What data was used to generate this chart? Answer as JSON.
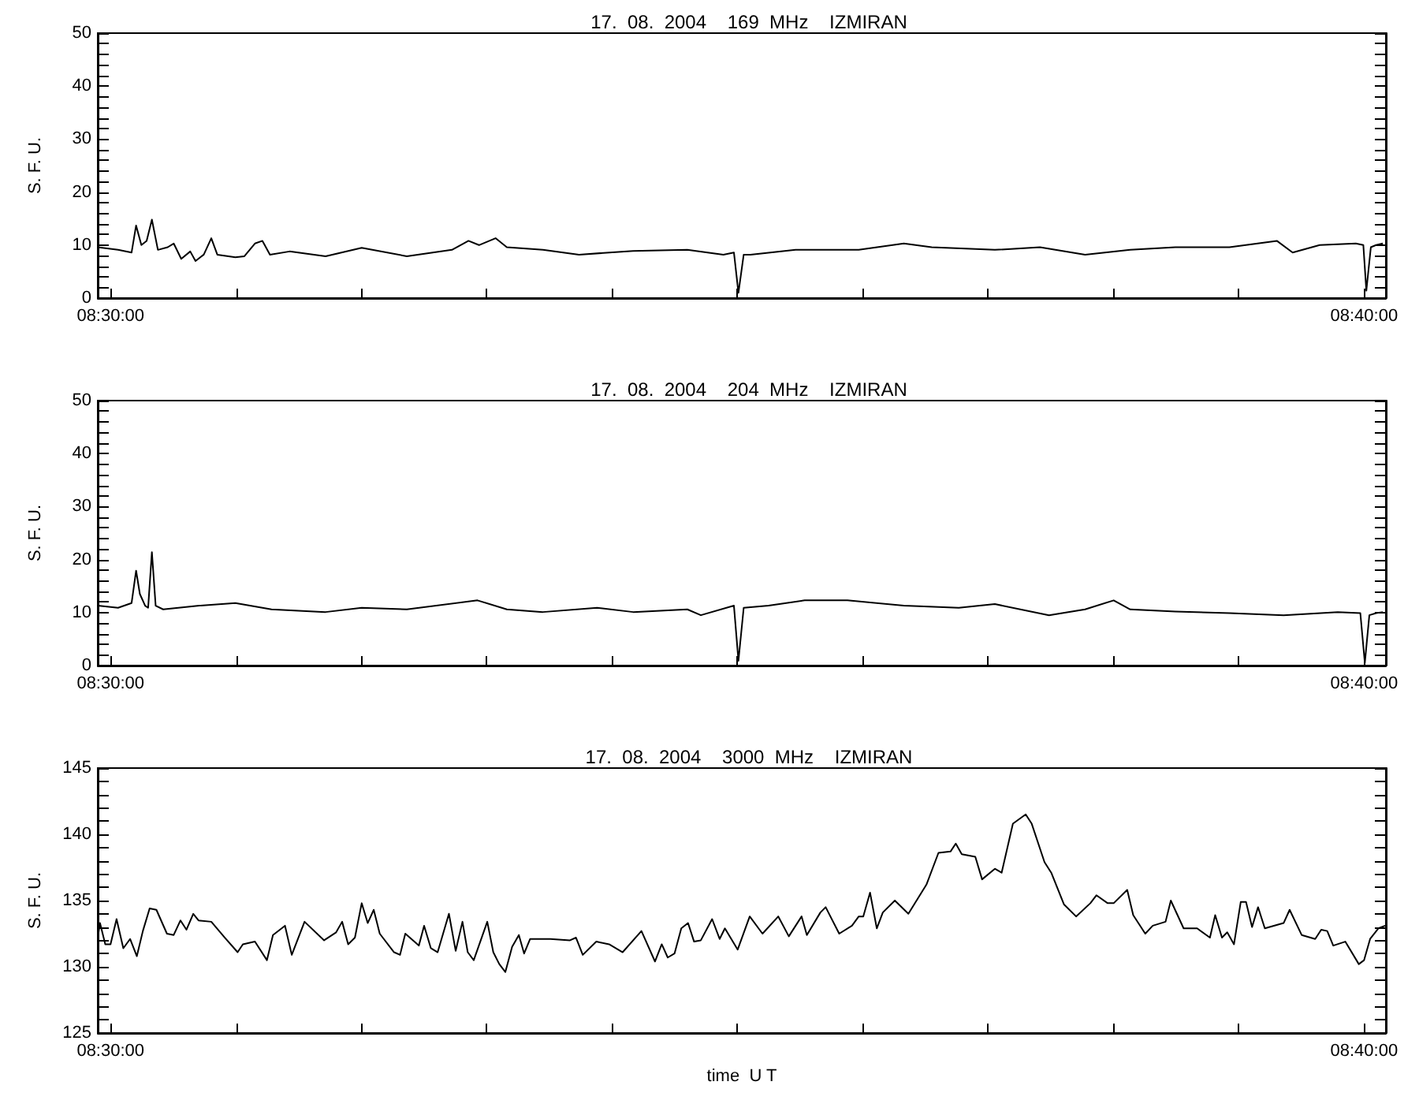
{
  "chart_data": [
    {
      "type": "line",
      "title": "17.  08.  2004    169  MHz    IZMIRAN",
      "ylabel": "S. F. U.",
      "xlim": [
        8.4983,
        8.6696
      ],
      "ylim": [
        0,
        50
      ],
      "xticks": [
        {
          "value": 8.5,
          "label": "08:30:00"
        },
        {
          "value": 8.5167,
          "label": null
        },
        {
          "value": 8.5333,
          "label": null
        },
        {
          "value": 8.55,
          "label": null
        },
        {
          "value": 8.5667,
          "label": null
        },
        {
          "value": 8.5833,
          "label": null
        },
        {
          "value": 8.6,
          "label": null
        },
        {
          "value": 8.6167,
          "label": null
        },
        {
          "value": 8.6333,
          "label": null
        },
        {
          "value": 8.65,
          "label": null
        },
        {
          "value": 8.6667,
          "label": "08:40:00"
        }
      ],
      "yticks": [
        0,
        {
          "value": 2,
          "label": null
        },
        {
          "value": 4,
          "label": null
        },
        {
          "value": 6,
          "label": null
        },
        {
          "value": 8,
          "label": null
        },
        10,
        {
          "value": 12,
          "label": null
        },
        {
          "value": 14,
          "label": null
        },
        {
          "value": 16,
          "label": null
        },
        {
          "value": 18,
          "label": null
        },
        20,
        {
          "value": 22,
          "label": null
        },
        {
          "value": 24,
          "label": null
        },
        {
          "value": 26,
          "label": null
        },
        {
          "value": 28,
          "label": null
        },
        30,
        {
          "value": 32,
          "label": null
        },
        {
          "value": 34,
          "label": null
        },
        {
          "value": 36,
          "label": null
        },
        {
          "value": 38,
          "label": null
        },
        40,
        {
          "value": 42,
          "label": null
        },
        {
          "value": 44,
          "label": null
        },
        {
          "value": 46,
          "label": null
        },
        {
          "value": 48,
          "label": null
        },
        50
      ],
      "series": [
        {
          "color": "#000000",
          "x": [
            8.4983,
            8.501,
            8.5028,
            8.5034,
            8.5041,
            8.5048,
            8.5055,
            8.5063,
            8.5076,
            8.5084,
            8.5094,
            8.5106,
            8.5113,
            8.5124,
            8.5134,
            8.5142,
            8.5166,
            8.5178,
            8.5192,
            8.5202,
            8.5212,
            8.5238,
            8.5286,
            8.5334,
            8.5394,
            8.5454,
            8.5476,
            8.549,
            8.5512,
            8.5527,
            8.5575,
            8.5623,
            8.5695,
            8.5767,
            8.5815,
            8.5829,
            8.5835,
            8.5842,
            8.5851,
            8.5911,
            8.5995,
            8.6055,
            8.6092,
            8.6176,
            8.6236,
            8.6296,
            8.6356,
            8.6416,
            8.6488,
            8.6551,
            8.6572,
            8.6608,
            8.6656,
            8.6666,
            8.667,
            8.6676,
            8.6683,
            8.6692
          ],
          "values": [
            9.6,
            9.1,
            8.6,
            13.7,
            10.0,
            10.8,
            14.8,
            9.1,
            9.6,
            10.3,
            7.4,
            8.8,
            7.0,
            8.2,
            11.3,
            8.2,
            7.7,
            7.9,
            10.3,
            10.8,
            8.2,
            8.8,
            7.9,
            9.5,
            7.9,
            9.1,
            10.8,
            10.0,
            11.3,
            9.6,
            9.1,
            8.2,
            8.9,
            9.1,
            8.2,
            8.6,
            1.0,
            8.2,
            8.2,
            9.1,
            9.1,
            10.3,
            9.6,
            9.1,
            9.6,
            8.2,
            9.1,
            9.6,
            9.6,
            10.8,
            8.6,
            10.0,
            10.3,
            10.0,
            1.4,
            9.6,
            10.0,
            10.3
          ]
        }
      ]
    },
    {
      "type": "line",
      "title": "17.  08.  2004    204  MHz    IZMIRAN",
      "ylabel": "S. F. U.",
      "xlim": [
        8.4983,
        8.6696
      ],
      "ylim": [
        0,
        50
      ],
      "xticks": [
        {
          "value": 8.5,
          "label": "08:30:00"
        },
        {
          "value": 8.5167,
          "label": null
        },
        {
          "value": 8.5333,
          "label": null
        },
        {
          "value": 8.55,
          "label": null
        },
        {
          "value": 8.5667,
          "label": null
        },
        {
          "value": 8.5833,
          "label": null
        },
        {
          "value": 8.6,
          "label": null
        },
        {
          "value": 8.6167,
          "label": null
        },
        {
          "value": 8.6333,
          "label": null
        },
        {
          "value": 8.65,
          "label": null
        },
        {
          "value": 8.6667,
          "label": "08:40:00"
        }
      ],
      "yticks": [
        0,
        {
          "value": 2,
          "label": null
        },
        {
          "value": 4,
          "label": null
        },
        {
          "value": 6,
          "label": null
        },
        {
          "value": 8,
          "label": null
        },
        10,
        {
          "value": 12,
          "label": null
        },
        {
          "value": 14,
          "label": null
        },
        {
          "value": 16,
          "label": null
        },
        {
          "value": 18,
          "label": null
        },
        20,
        {
          "value": 22,
          "label": null
        },
        {
          "value": 24,
          "label": null
        },
        {
          "value": 26,
          "label": null
        },
        {
          "value": 28,
          "label": null
        },
        30,
        {
          "value": 32,
          "label": null
        },
        {
          "value": 34,
          "label": null
        },
        {
          "value": 36,
          "label": null
        },
        {
          "value": 38,
          "label": null
        },
        40,
        {
          "value": 42,
          "label": null
        },
        {
          "value": 44,
          "label": null
        },
        {
          "value": 46,
          "label": null
        },
        {
          "value": 48,
          "label": null
        },
        50
      ],
      "series": [
        {
          "color": "#000000",
          "x": [
            8.4983,
            8.501,
            8.5028,
            8.5034,
            8.5039,
            8.5046,
            8.505,
            8.5055,
            8.506,
            8.507,
            8.5118,
            8.5166,
            8.5214,
            8.5286,
            8.5334,
            8.5394,
            8.5488,
            8.5527,
            8.5575,
            8.5647,
            8.5695,
            8.5767,
            8.5785,
            8.5829,
            8.5835,
            8.5842,
            8.5875,
            8.5923,
            8.598,
            8.6055,
            8.6128,
            8.6176,
            8.6248,
            8.6296,
            8.6334,
            8.6356,
            8.6416,
            8.6488,
            8.656,
            8.6632,
            8.6662,
            8.6668,
            8.6674,
            8.6683,
            8.6692
          ],
          "values": [
            11.3,
            10.9,
            11.8,
            17.9,
            13.5,
            11.3,
            10.9,
            21.4,
            11.3,
            10.6,
            11.3,
            11.8,
            10.6,
            10.1,
            10.9,
            10.6,
            12.3,
            10.6,
            10.1,
            10.9,
            10.1,
            10.6,
            9.5,
            11.3,
            0.9,
            10.9,
            11.3,
            12.3,
            12.3,
            11.3,
            10.9,
            11.6,
            9.5,
            10.6,
            12.3,
            10.6,
            10.2,
            9.9,
            9.5,
            10.1,
            9.9,
            0.5,
            9.5,
            9.9,
            10.1
          ]
        }
      ]
    },
    {
      "type": "line",
      "title": "17.  08.  2004    3000  MHz    IZMIRAN",
      "ylabel": "S. F. U.",
      "xlabel": "time  U T",
      "xlim": [
        8.4983,
        8.6696
      ],
      "ylim": [
        125,
        145
      ],
      "xticks": [
        {
          "value": 8.5,
          "label": "08:30:00"
        },
        {
          "value": 8.5167,
          "label": null
        },
        {
          "value": 8.5333,
          "label": null
        },
        {
          "value": 8.55,
          "label": null
        },
        {
          "value": 8.5667,
          "label": null
        },
        {
          "value": 8.5833,
          "label": null
        },
        {
          "value": 8.6,
          "label": null
        },
        {
          "value": 8.6167,
          "label": null
        },
        {
          "value": 8.6333,
          "label": null
        },
        {
          "value": 8.65,
          "label": null
        },
        {
          "value": 8.6667,
          "label": "08:40:00"
        }
      ],
      "yticks": [
        125,
        {
          "value": 126,
          "label": null
        },
        {
          "value": 127,
          "label": null
        },
        {
          "value": 128,
          "label": null
        },
        {
          "value": 129,
          "label": null
        },
        130,
        {
          "value": 131,
          "label": null
        },
        {
          "value": 132,
          "label": null
        },
        {
          "value": 133,
          "label": null
        },
        {
          "value": 134,
          "label": null
        },
        135,
        {
          "value": 136,
          "label": null
        },
        {
          "value": 137,
          "label": null
        },
        {
          "value": 138,
          "label": null
        },
        {
          "value": 139,
          "label": null
        },
        140,
        {
          "value": 141,
          "label": null
        },
        {
          "value": 142,
          "label": null
        },
        {
          "value": 143,
          "label": null
        },
        {
          "value": 144,
          "label": null
        },
        145
      ],
      "series": [
        {
          "color": "#000000",
          "x": [
            8.4983,
            8.4986,
            8.4993,
            8.5,
            8.5008,
            8.5017,
            8.5026,
            8.5035,
            8.5043,
            8.5052,
            8.5061,
            8.5075,
            8.5084,
            8.5093,
            8.5101,
            8.511,
            8.5117,
            8.5134,
            8.5152,
            8.5169,
            8.5176,
            8.5192,
            8.5208,
            8.5216,
            8.5232,
            8.5241,
            8.5258,
            8.5284,
            8.53,
            8.5308,
            8.5316,
            8.5325,
            8.5334,
            8.5342,
            8.535,
            8.5358,
            8.5377,
            8.5385,
            8.5392,
            8.541,
            8.5417,
            8.5426,
            8.5435,
            8.545,
            8.5459,
            8.5468,
            8.5475,
            8.5483,
            8.5501,
            8.5509,
            8.5517,
            8.5525,
            8.5534,
            8.5543,
            8.555,
            8.5558,
            8.5585,
            8.5611,
            8.5619,
            8.5628,
            8.5646,
            8.5663,
            8.5681,
            8.5706,
            8.5724,
            8.5733,
            8.5741,
            8.575,
            8.5759,
            8.5768,
            8.5776,
            8.5785,
            8.58,
            8.581,
            8.5817,
            8.5834,
            8.585,
            8.5867,
            8.5888,
            8.5902,
            8.5919,
            8.5926,
            8.5944,
            8.5951,
            8.5969,
            8.5986,
            8.5995,
            8.6001,
            8.601,
            8.6019,
            8.6027,
            8.6043,
            8.6061,
            8.6085,
            8.6101,
            8.6117,
            8.6124,
            8.6132,
            8.615,
            8.6159,
            8.6176,
            8.6185,
            8.62,
            8.6217,
            8.6225,
            8.6242,
            8.6251,
            8.6268,
            8.6284,
            8.6303,
            8.6311,
            8.6326,
            8.6334,
            8.6352,
            8.636,
            8.6376,
            8.6386,
            8.6403,
            8.641,
            8.6427,
            8.6445,
            8.6462,
            8.6469,
            8.6478,
            8.6485,
            8.6494,
            8.6503,
            8.651,
            8.6518,
            8.6526,
            8.6535,
            8.656,
            8.6568,
            8.6584,
            8.6602,
            8.661,
            8.6618,
            8.6626,
            8.6642,
            8.666,
            8.6667,
            8.6675,
            8.6686,
            8.6695
          ],
          "values": [
            132.2,
            133.3,
            131.7,
            131.7,
            133.6,
            131.4,
            132.1,
            130.8,
            132.7,
            134.4,
            134.3,
            132.5,
            132.4,
            133.5,
            132.8,
            134.0,
            133.5,
            133.4,
            132.2,
            131.1,
            131.7,
            131.9,
            130.5,
            132.4,
            133.1,
            130.9,
            133.4,
            132.0,
            132.6,
            133.4,
            131.7,
            132.2,
            134.8,
            133.3,
            134.3,
            132.5,
            131.1,
            130.9,
            132.5,
            131.6,
            133.1,
            131.4,
            131.1,
            134.0,
            131.2,
            133.4,
            131.1,
            130.5,
            133.4,
            131.1,
            130.2,
            129.6,
            131.5,
            132.4,
            131.0,
            132.1,
            132.1,
            132.0,
            132.2,
            130.9,
            131.9,
            131.7,
            131.1,
            132.7,
            130.4,
            131.7,
            130.7,
            131.0,
            132.9,
            133.3,
            131.9,
            132.0,
            133.6,
            132.1,
            132.9,
            131.3,
            133.8,
            132.5,
            133.8,
            132.3,
            133.8,
            132.4,
            134.1,
            134.5,
            132.5,
            133.1,
            133.8,
            133.8,
            135.6,
            132.9,
            134.1,
            135.0,
            134.0,
            136.2,
            138.6,
            138.7,
            139.3,
            138.5,
            138.3,
            136.6,
            137.4,
            137.1,
            140.8,
            141.5,
            140.8,
            137.9,
            137.1,
            134.7,
            133.8,
            134.8,
            135.4,
            134.8,
            134.8,
            135.8,
            133.9,
            132.5,
            133.1,
            133.4,
            135.0,
            132.9,
            132.9,
            132.2,
            133.9,
            132.2,
            132.6,
            131.7,
            134.9,
            134.9,
            133.0,
            134.5,
            132.9,
            133.3,
            134.3,
            132.4,
            132.1,
            132.8,
            132.7,
            131.6,
            131.9,
            130.2,
            130.5,
            132.1,
            132.9,
            133.1
          ]
        }
      ]
    }
  ]
}
